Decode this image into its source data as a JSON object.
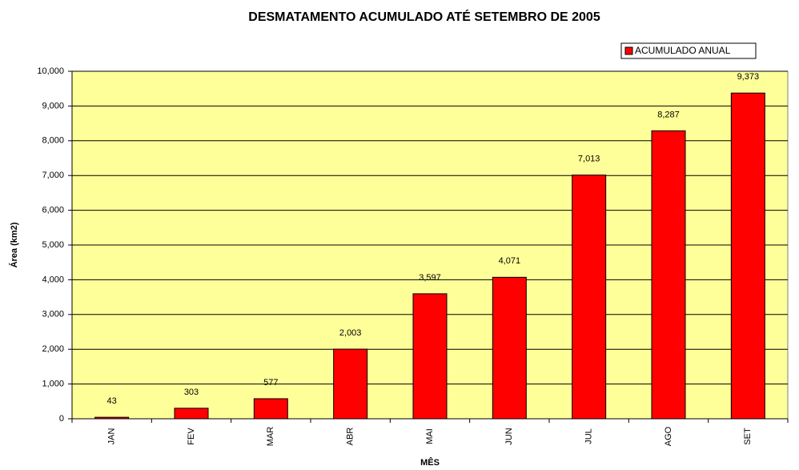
{
  "chart_data": {
    "type": "bar",
    "title": "DESMATAMENTO ACUMULADO ATÉ SETEMBRO DE 2005",
    "y_label": "Área (km2)",
    "x_label": "MÊS",
    "categories": [
      "JAN",
      "FEV",
      "MAR",
      "ABR",
      "MAI",
      "JUN",
      "JUL",
      "AGO",
      "SET"
    ],
    "series": [
      {
        "name": "ACUMULADO ANUAL",
        "color": "#ff0000",
        "values": [
          43,
          303,
          577,
          2003,
          3597,
          4071,
          7013,
          8287,
          9373
        ],
        "value_labels": [
          "43",
          "303",
          "577",
          "2,003",
          "3,597",
          "4,071",
          "7,013",
          "8,287",
          "9,373"
        ]
      }
    ],
    "ylim": [
      0,
      10000
    ],
    "yticks": [
      0,
      {
        "value": 1000,
        "label": "1,000"
      },
      {
        "value": 2000,
        "label": "2,000"
      },
      {
        "value": 3000,
        "label": "3,000"
      },
      {
        "value": 4000,
        "label": "4,000"
      },
      {
        "value": 5000,
        "label": "5,000"
      },
      {
        "value": 6000,
        "label": "6,000"
      },
      {
        "value": 7000,
        "label": "7,000"
      },
      {
        "value": 8000,
        "label": "8,000"
      },
      {
        "value": 9000,
        "label": "9,000"
      },
      {
        "value": 10000,
        "label": "10,000"
      }
    ],
    "grid": true,
    "plot_background": "#ffff99",
    "legend": "top-right"
  }
}
